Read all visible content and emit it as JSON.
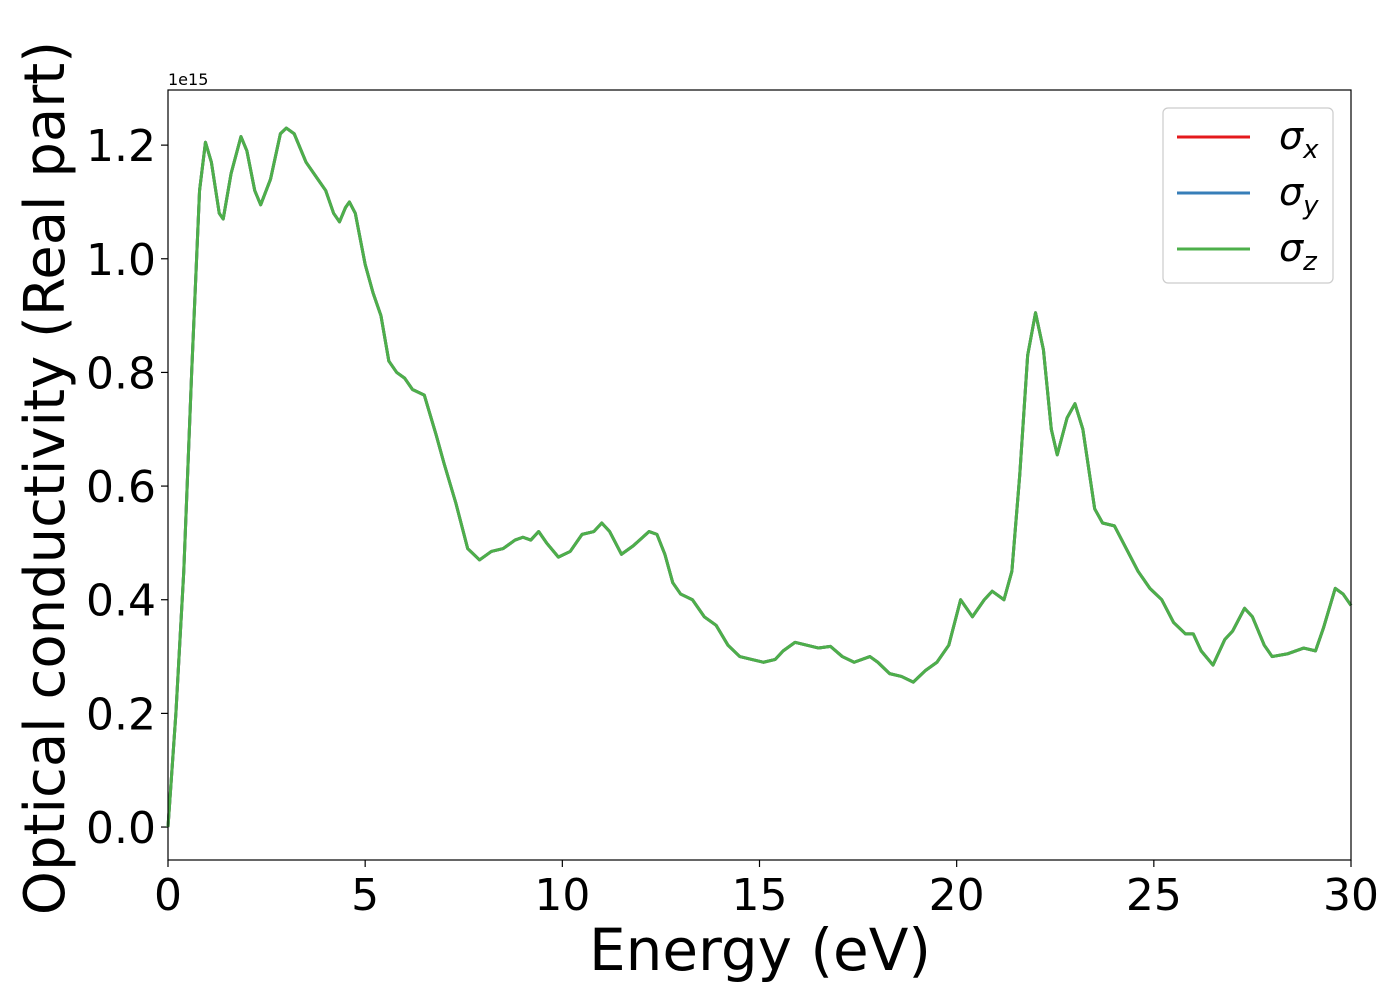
{
  "chart_data": {
    "type": "line",
    "xlabel": "Energy (eV)",
    "ylabel": "Optical conductivity (Real part)",
    "y_offset_label": "1e15",
    "legend": "upper right",
    "x": [
      0,
      0.2,
      0.4,
      0.6,
      0.8,
      0.95,
      1.1,
      1.3,
      1.4,
      1.6,
      1.85,
      2.0,
      2.2,
      2.35,
      2.6,
      2.85,
      3.0,
      3.2,
      3.5,
      3.8,
      4.0,
      4.2,
      4.35,
      4.5,
      4.6,
      4.75,
      5.0,
      5.2,
      5.4,
      5.6,
      5.8,
      6.0,
      6.2,
      6.5,
      6.8,
      7.0,
      7.3,
      7.6,
      7.9,
      8.2,
      8.5,
      8.8,
      9.0,
      9.2,
      9.4,
      9.6,
      9.9,
      10.2,
      10.5,
      10.8,
      11.0,
      11.2,
      11.5,
      11.8,
      12.2,
      12.4,
      12.6,
      12.8,
      13.0,
      13.3,
      13.6,
      13.9,
      14.2,
      14.5,
      14.8,
      15.1,
      15.4,
      15.6,
      15.9,
      16.2,
      16.5,
      16.8,
      17.1,
      17.4,
      17.8,
      18.0,
      18.3,
      18.6,
      18.9,
      19.2,
      19.5,
      19.8,
      20.1,
      20.4,
      20.7,
      20.9,
      21.2,
      21.4,
      21.6,
      21.8,
      22.0,
      22.2,
      22.4,
      22.55,
      22.8,
      23.0,
      23.2,
      23.5,
      23.7,
      24.0,
      24.3,
      24.6,
      24.9,
      25.2,
      25.5,
      25.8,
      26.0,
      26.2,
      26.5,
      26.8,
      27.0,
      27.3,
      27.5,
      27.8,
      28.0,
      28.4,
      28.8,
      29.1,
      29.3,
      29.6,
      29.8,
      30.0
    ],
    "series": [
      {
        "name": "σx",
        "color": "#e41a1c",
        "values": [
          0.0,
          0.2,
          0.45,
          0.8,
          1.12,
          1.205,
          1.17,
          1.08,
          1.07,
          1.15,
          1.215,
          1.19,
          1.12,
          1.095,
          1.14,
          1.22,
          1.23,
          1.22,
          1.17,
          1.14,
          1.12,
          1.08,
          1.065,
          1.09,
          1.1,
          1.08,
          0.99,
          0.94,
          0.9,
          0.82,
          0.8,
          0.79,
          0.77,
          0.76,
          0.69,
          0.64,
          0.57,
          0.49,
          0.47,
          0.485,
          0.49,
          0.505,
          0.51,
          0.505,
          0.52,
          0.5,
          0.475,
          0.485,
          0.515,
          0.52,
          0.535,
          0.52,
          0.48,
          0.495,
          0.52,
          0.515,
          0.48,
          0.43,
          0.41,
          0.4,
          0.37,
          0.355,
          0.32,
          0.3,
          0.295,
          0.29,
          0.295,
          0.31,
          0.325,
          0.32,
          0.315,
          0.318,
          0.3,
          0.29,
          0.3,
          0.29,
          0.27,
          0.265,
          0.255,
          0.275,
          0.29,
          0.32,
          0.4,
          0.37,
          0.4,
          0.415,
          0.4,
          0.45,
          0.62,
          0.83,
          0.905,
          0.84,
          0.7,
          0.655,
          0.72,
          0.745,
          0.7,
          0.56,
          0.535,
          0.53,
          0.49,
          0.45,
          0.42,
          0.4,
          0.36,
          0.34,
          0.34,
          0.31,
          0.285,
          0.33,
          0.345,
          0.385,
          0.37,
          0.32,
          0.3,
          0.305,
          0.315,
          0.31,
          0.35,
          0.42,
          0.41,
          0.39
        ]
      },
      {
        "name": "σy",
        "color": "#377eb8",
        "values": [
          0.0,
          0.2,
          0.45,
          0.8,
          1.12,
          1.205,
          1.17,
          1.08,
          1.07,
          1.15,
          1.215,
          1.19,
          1.12,
          1.095,
          1.14,
          1.22,
          1.23,
          1.22,
          1.17,
          1.14,
          1.12,
          1.08,
          1.065,
          1.09,
          1.1,
          1.08,
          0.99,
          0.94,
          0.9,
          0.82,
          0.8,
          0.79,
          0.77,
          0.76,
          0.69,
          0.64,
          0.57,
          0.49,
          0.47,
          0.485,
          0.49,
          0.505,
          0.51,
          0.505,
          0.52,
          0.5,
          0.475,
          0.485,
          0.515,
          0.52,
          0.535,
          0.52,
          0.48,
          0.495,
          0.52,
          0.515,
          0.48,
          0.43,
          0.41,
          0.4,
          0.37,
          0.355,
          0.32,
          0.3,
          0.295,
          0.29,
          0.295,
          0.31,
          0.325,
          0.32,
          0.315,
          0.318,
          0.3,
          0.29,
          0.3,
          0.29,
          0.27,
          0.265,
          0.255,
          0.275,
          0.29,
          0.32,
          0.4,
          0.37,
          0.4,
          0.415,
          0.4,
          0.45,
          0.62,
          0.83,
          0.905,
          0.84,
          0.7,
          0.655,
          0.72,
          0.745,
          0.7,
          0.56,
          0.535,
          0.53,
          0.49,
          0.45,
          0.42,
          0.4,
          0.36,
          0.34,
          0.34,
          0.31,
          0.285,
          0.33,
          0.345,
          0.385,
          0.37,
          0.32,
          0.3,
          0.305,
          0.315,
          0.31,
          0.35,
          0.42,
          0.41,
          0.39
        ]
      },
      {
        "name": "σz",
        "color": "#4daf4a",
        "values": [
          0.0,
          0.2,
          0.45,
          0.8,
          1.12,
          1.205,
          1.17,
          1.08,
          1.07,
          1.15,
          1.215,
          1.19,
          1.12,
          1.095,
          1.14,
          1.22,
          1.23,
          1.22,
          1.17,
          1.14,
          1.12,
          1.08,
          1.065,
          1.09,
          1.1,
          1.08,
          0.99,
          0.94,
          0.9,
          0.82,
          0.8,
          0.79,
          0.77,
          0.76,
          0.69,
          0.64,
          0.57,
          0.49,
          0.47,
          0.485,
          0.49,
          0.505,
          0.51,
          0.505,
          0.52,
          0.5,
          0.475,
          0.485,
          0.515,
          0.52,
          0.535,
          0.52,
          0.48,
          0.495,
          0.52,
          0.515,
          0.48,
          0.43,
          0.41,
          0.4,
          0.37,
          0.355,
          0.32,
          0.3,
          0.295,
          0.29,
          0.295,
          0.31,
          0.325,
          0.32,
          0.315,
          0.318,
          0.3,
          0.29,
          0.3,
          0.29,
          0.27,
          0.265,
          0.255,
          0.275,
          0.29,
          0.32,
          0.4,
          0.37,
          0.4,
          0.415,
          0.4,
          0.45,
          0.62,
          0.83,
          0.905,
          0.84,
          0.7,
          0.655,
          0.72,
          0.745,
          0.7,
          0.56,
          0.535,
          0.53,
          0.49,
          0.45,
          0.42,
          0.4,
          0.36,
          0.34,
          0.34,
          0.31,
          0.285,
          0.33,
          0.345,
          0.385,
          0.37,
          0.32,
          0.3,
          0.305,
          0.315,
          0.31,
          0.35,
          0.42,
          0.41,
          0.39
        ]
      }
    ],
    "xlim": [
      0,
      30
    ],
    "xticks": [
      0,
      5,
      10,
      15,
      20,
      25,
      30
    ],
    "ylim": [
      -0.058,
      1.297
    ],
    "yticks": [
      {
        "value": 0,
        "label": "0.0"
      },
      0.2,
      0.4,
      0.6,
      0.8,
      {
        "value": 1,
        "label": "1.0"
      },
      1.2
    ]
  }
}
